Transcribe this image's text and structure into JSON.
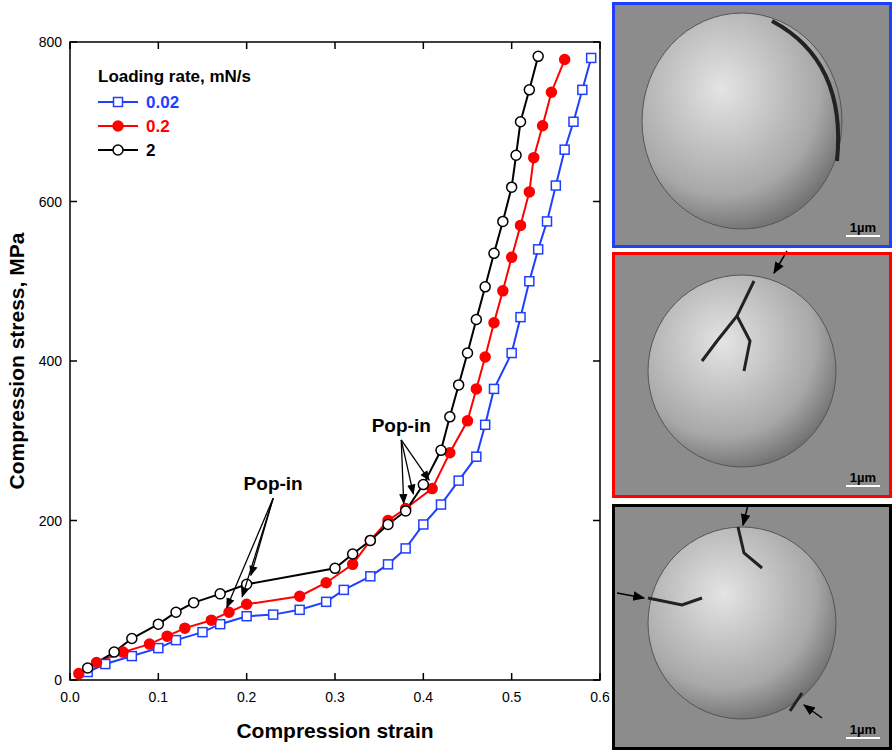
{
  "chart_data": {
    "type": "line",
    "x_label": "Compression strain",
    "y_label": "Compression stress, MPa",
    "legend_title": "Loading rate, mN/s",
    "legend": "upper left",
    "grid": false,
    "xlim": [
      0,
      0.6
    ],
    "ylim": [
      0,
      800
    ],
    "xticks": [
      {
        "value": 0,
        "label": "0.0"
      },
      0.1,
      0.2,
      0.3,
      0.4,
      0.5,
      0.6
    ],
    "yticks": [
      0,
      200,
      400,
      600,
      800
    ],
    "series": [
      {
        "name": "0.02",
        "color": "#1f3fff",
        "marker": "square-open",
        "x": [
          0.02,
          0.04,
          0.07,
          0.1,
          0.12,
          0.15,
          0.17,
          0.2,
          0.23,
          0.26,
          0.29,
          0.31,
          0.34,
          0.36,
          0.38,
          0.4,
          0.42,
          0.44,
          0.46,
          0.47,
          0.48,
          0.5,
          0.51,
          0.52,
          0.53,
          0.54,
          0.55,
          0.56,
          0.57,
          0.58,
          0.59
        ],
        "values": [
          10,
          20,
          30,
          40,
          50,
          60,
          70,
          80,
          82,
          88,
          98,
          113,
          130,
          145,
          165,
          195,
          220,
          250,
          280,
          320,
          365,
          410,
          455,
          500,
          540,
          575,
          620,
          665,
          700,
          740,
          780
        ]
      },
      {
        "name": "0.2",
        "color": "#ff0000",
        "marker": "circle",
        "x": [
          0.01,
          0.03,
          0.06,
          0.09,
          0.11,
          0.13,
          0.16,
          0.18,
          0.2,
          0.26,
          0.29,
          0.32,
          0.34,
          0.36,
          0.38,
          0.41,
          0.43,
          0.45,
          0.46,
          0.47,
          0.48,
          0.49,
          0.5,
          0.51,
          0.52,
          0.525,
          0.535,
          0.545,
          0.56
        ],
        "values": [
          8,
          22,
          35,
          45,
          55,
          65,
          75,
          85,
          95,
          105,
          122,
          145,
          175,
          200,
          215,
          240,
          285,
          325,
          365,
          405,
          448,
          488,
          530,
          570,
          612,
          655,
          695,
          737,
          778
        ]
      },
      {
        "name": "2",
        "color": "#000000",
        "marker": "circle-open",
        "x": [
          0.02,
          0.05,
          0.07,
          0.1,
          0.12,
          0.14,
          0.17,
          0.2,
          0.3,
          0.32,
          0.34,
          0.36,
          0.38,
          0.4,
          0.42,
          0.43,
          0.44,
          0.45,
          0.46,
          0.47,
          0.48,
          0.49,
          0.5,
          0.505,
          0.51,
          0.52,
          0.53
        ],
        "values": [
          15,
          35,
          52,
          70,
          85,
          97,
          108,
          120,
          140,
          158,
          175,
          195,
          212,
          245,
          288,
          330,
          370,
          410,
          452,
          493,
          535,
          575,
          618,
          658,
          700,
          740,
          782
        ]
      }
    ],
    "annotations": [
      {
        "text": "Pop-in",
        "x": 0.23,
        "y": 238,
        "targets": [
          [
            0.175,
            84
          ],
          [
            0.193,
            97
          ],
          [
            0.203,
            124
          ]
        ]
      },
      {
        "text": "Pop-in",
        "x": 0.375,
        "y": 311,
        "targets": [
          [
            0.378,
            214
          ],
          [
            0.39,
            226
          ],
          [
            0.41,
            244
          ]
        ]
      }
    ]
  },
  "panels": [
    {
      "color": "#1f3fff",
      "scale_bar": "1µm"
    },
    {
      "color": "#ff0000",
      "scale_bar": "1µm"
    },
    {
      "color": "#000000",
      "scale_bar": "1µm"
    }
  ]
}
